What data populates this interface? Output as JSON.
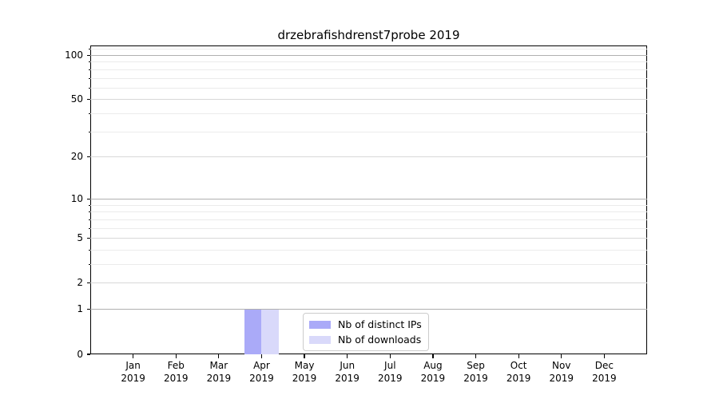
{
  "chart_data": {
    "type": "bar",
    "title": "drzebrafishdrenst7probe 2019",
    "categories": [
      "Jan 2019",
      "Feb 2019",
      "Mar 2019",
      "Apr 2019",
      "May 2019",
      "Jun 2019",
      "Jul 2019",
      "Aug 2019",
      "Sep 2019",
      "Oct 2019",
      "Nov 2019",
      "Dec 2019"
    ],
    "series": [
      {
        "name": "Nb of distinct IPs",
        "color": "#aaaaf8",
        "values": [
          0,
          0,
          0,
          1,
          0,
          0,
          0,
          0,
          0,
          0,
          0,
          0
        ]
      },
      {
        "name": "Nb of downloads",
        "color": "#d9d9fa",
        "values": [
          0,
          0,
          0,
          1,
          0,
          0,
          0,
          0,
          0,
          0,
          0,
          0
        ]
      }
    ],
    "y_axis": {
      "scale": "log1p",
      "labeled_ticks": [
        0,
        1,
        2,
        5,
        10,
        20,
        50,
        100
      ],
      "power_ticks": [
        1,
        10,
        100
      ],
      "mid_ticks": [
        2,
        5,
        20,
        50
      ],
      "minor_ticks": [
        3,
        4,
        6,
        7,
        8,
        9,
        30,
        40,
        60,
        70,
        80,
        90,
        110
      ],
      "range": [
        0,
        116
      ]
    },
    "legend_position": "lower center",
    "grid": true
  },
  "colors": {
    "spine": "#000000",
    "grid_major": "#b0b0b0",
    "grid_mid": "#d8d8d8",
    "grid_minor": "#ebebeb",
    "legend_border": "#cccccc",
    "text": "#000000"
  }
}
